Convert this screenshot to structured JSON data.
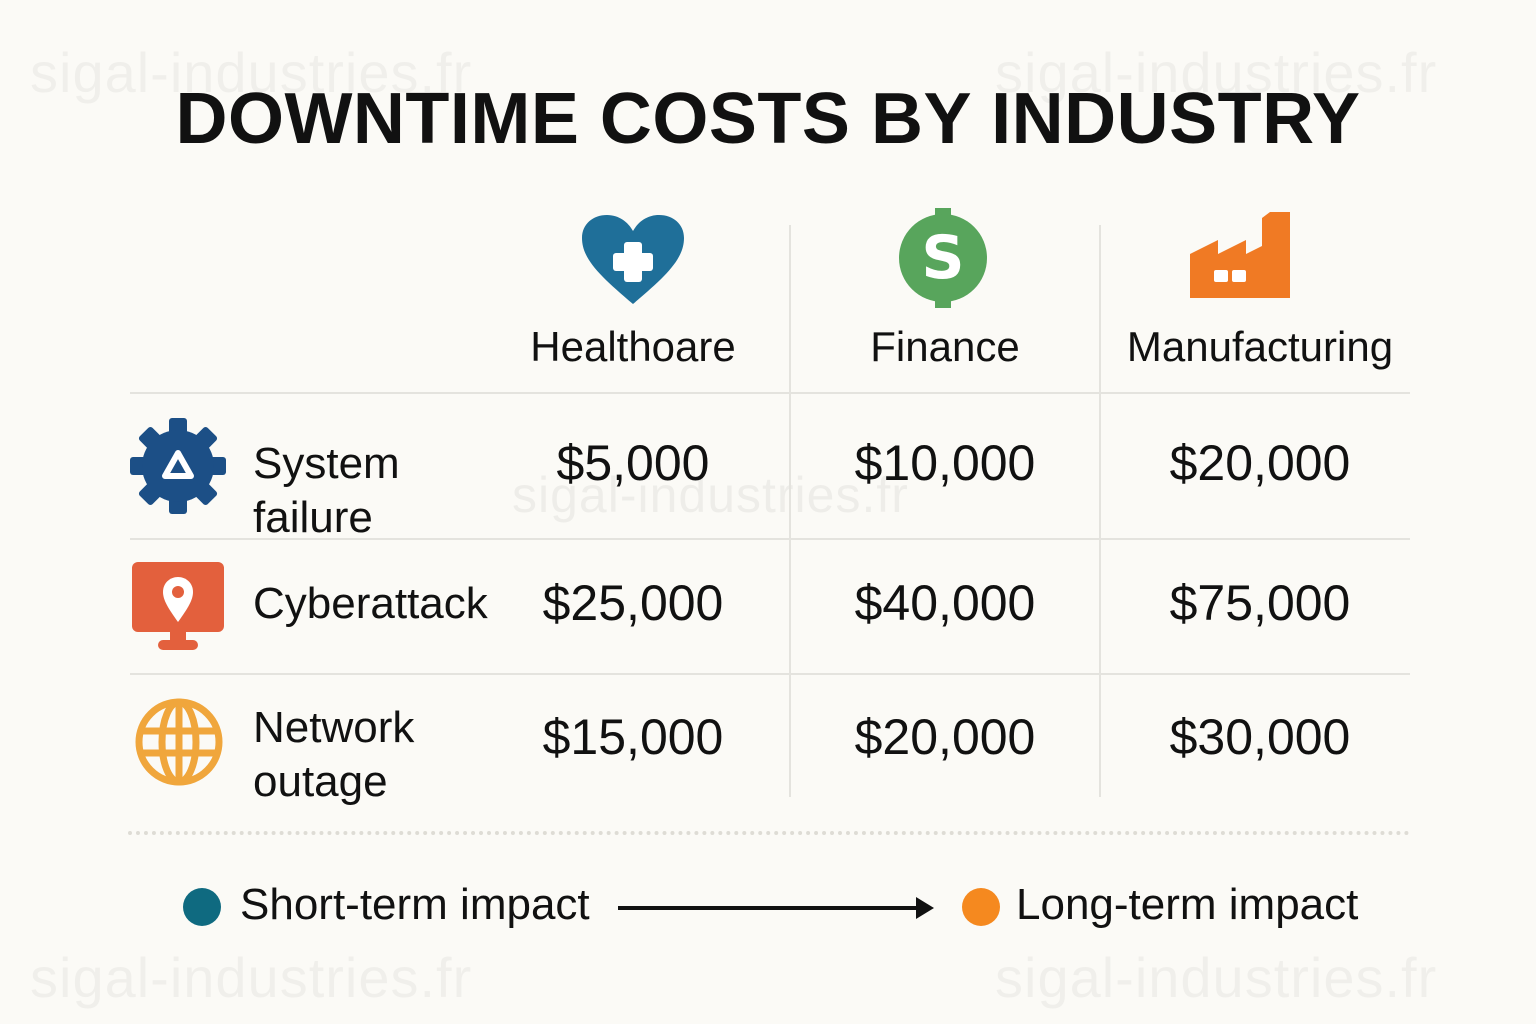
{
  "watermark": "sigal-industries.fr",
  "title": "DOWNTIME COSTS BY INDUSTRY",
  "columns": [
    {
      "label": "Healthoare",
      "icon": "heart-cross-icon",
      "color": "#1f6f99"
    },
    {
      "label": "Finance",
      "icon": "dollar-coin-icon",
      "color": "#58a55c"
    },
    {
      "label": "Manufacturing",
      "icon": "factory-icon",
      "color": "#f07a24"
    }
  ],
  "rows": [
    {
      "label_line1": "System",
      "label_line2": "failure",
      "icon": "gear-warning-icon",
      "icon_color": "#1c4f86",
      "values": [
        "$5,000",
        "$10,000",
        "$20,000"
      ]
    },
    {
      "label_line1": "Cyberattack",
      "label_line2": "",
      "icon": "monitor-location-icon",
      "icon_color": "#e3603d",
      "values": [
        "$25,000",
        "$40,000",
        "$75,000"
      ]
    },
    {
      "label_line1": "Network",
      "label_line2": "outage",
      "icon": "globe-icon",
      "icon_color": "#f0a63c",
      "values": [
        "$15,000",
        "$20,000",
        "$30,000"
      ]
    }
  ],
  "legend": {
    "short_label": "Short-term impact",
    "short_color": "#0f6a80",
    "long_label": "Long-term impact",
    "long_color": "#f5891f"
  }
}
